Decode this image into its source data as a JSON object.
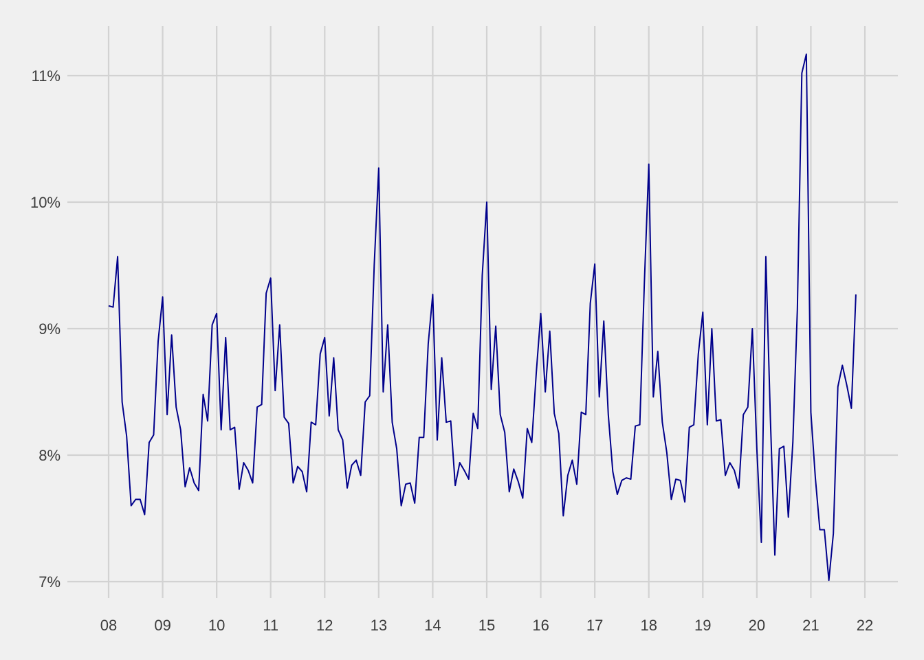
{
  "chart_data": {
    "type": "line",
    "title": "",
    "xlabel": "",
    "ylabel": "",
    "x_unit": "year (2-digit), monthly observations",
    "ylim": [
      6.85,
      11.35
    ],
    "xlim": [
      2007.8,
      2022.6
    ],
    "grid": true,
    "legend": "none",
    "line_color": "#00008b",
    "y_ticks": [
      {
        "value": 7,
        "label": "7%"
      },
      {
        "value": 8,
        "label": "8%"
      },
      {
        "value": 9,
        "label": "9%"
      },
      {
        "value": 10,
        "label": "10%"
      },
      {
        "value": 11,
        "label": "11%"
      }
    ],
    "x_ticks": [
      {
        "value": 2008,
        "label": "08"
      },
      {
        "value": 2009,
        "label": "09"
      },
      {
        "value": 2010,
        "label": "10"
      },
      {
        "value": 2011,
        "label": "11"
      },
      {
        "value": 2012,
        "label": "12"
      },
      {
        "value": 2013,
        "label": "13"
      },
      {
        "value": 2014,
        "label": "14"
      },
      {
        "value": 2015,
        "label": "15"
      },
      {
        "value": 2016,
        "label": "16"
      },
      {
        "value": 2017,
        "label": "17"
      },
      {
        "value": 2018,
        "label": "18"
      },
      {
        "value": 2019,
        "label": "19"
      },
      {
        "value": 2020,
        "label": "20"
      },
      {
        "value": 2021,
        "label": "21"
      },
      {
        "value": 2022,
        "label": "22"
      }
    ],
    "series": [
      {
        "start_year": 2008,
        "values": [
          9.18,
          9.17,
          9.57,
          8.42,
          8.15,
          7.6,
          7.65,
          7.65,
          7.53,
          8.1,
          8.16,
          8.9,
          9.25,
          8.32,
          8.95,
          8.38,
          8.2,
          7.75,
          7.9,
          7.78,
          7.72,
          8.48,
          8.27,
          9.03,
          9.12,
          8.2,
          8.93,
          8.2,
          8.22,
          7.73,
          7.94,
          7.88,
          7.78,
          8.38,
          8.4,
          9.28,
          9.4,
          8.51,
          9.03,
          8.3,
          8.25,
          7.78,
          7.91,
          7.87,
          7.71,
          8.26,
          8.24,
          8.8,
          8.93,
          8.31,
          8.77,
          8.2,
          8.12,
          7.74,
          7.92,
          7.96,
          7.84,
          8.42,
          8.47,
          9.5,
          10.27,
          8.5,
          9.03,
          8.26,
          8.05,
          7.6,
          7.77,
          7.78,
          7.62,
          8.14,
          8.14,
          8.88,
          9.27,
          8.12,
          8.77,
          8.26,
          8.27,
          7.76,
          7.94,
          7.88,
          7.81,
          8.33,
          8.21,
          9.42,
          10.0,
          8.52,
          9.02,
          8.32,
          8.18,
          7.71,
          7.89,
          7.79,
          7.66,
          8.21,
          8.1,
          8.65,
          9.12,
          8.5,
          8.98,
          8.33,
          8.17,
          7.52,
          7.84,
          7.96,
          7.77,
          8.34,
          8.32,
          9.2,
          9.51,
          8.46,
          9.06,
          8.32,
          7.87,
          7.69,
          7.8,
          7.82,
          7.81,
          8.23,
          8.24,
          9.35,
          10.3,
          8.46,
          8.82,
          8.26,
          8.02,
          7.65,
          7.81,
          7.8,
          7.63,
          8.22,
          8.24,
          8.8,
          9.13,
          8.24,
          9.0,
          8.27,
          8.28,
          7.84,
          7.94,
          7.88,
          7.74,
          8.32,
          8.38,
          9.0,
          8.05,
          7.31,
          9.57,
          8.3,
          7.21,
          8.05,
          8.07,
          7.51,
          8.1,
          9.15,
          11.02,
          11.17,
          8.34,
          7.82,
          7.41,
          7.41,
          7.01,
          7.38,
          8.54,
          8.71,
          8.55,
          8.37,
          9.27
        ]
      }
    ]
  }
}
